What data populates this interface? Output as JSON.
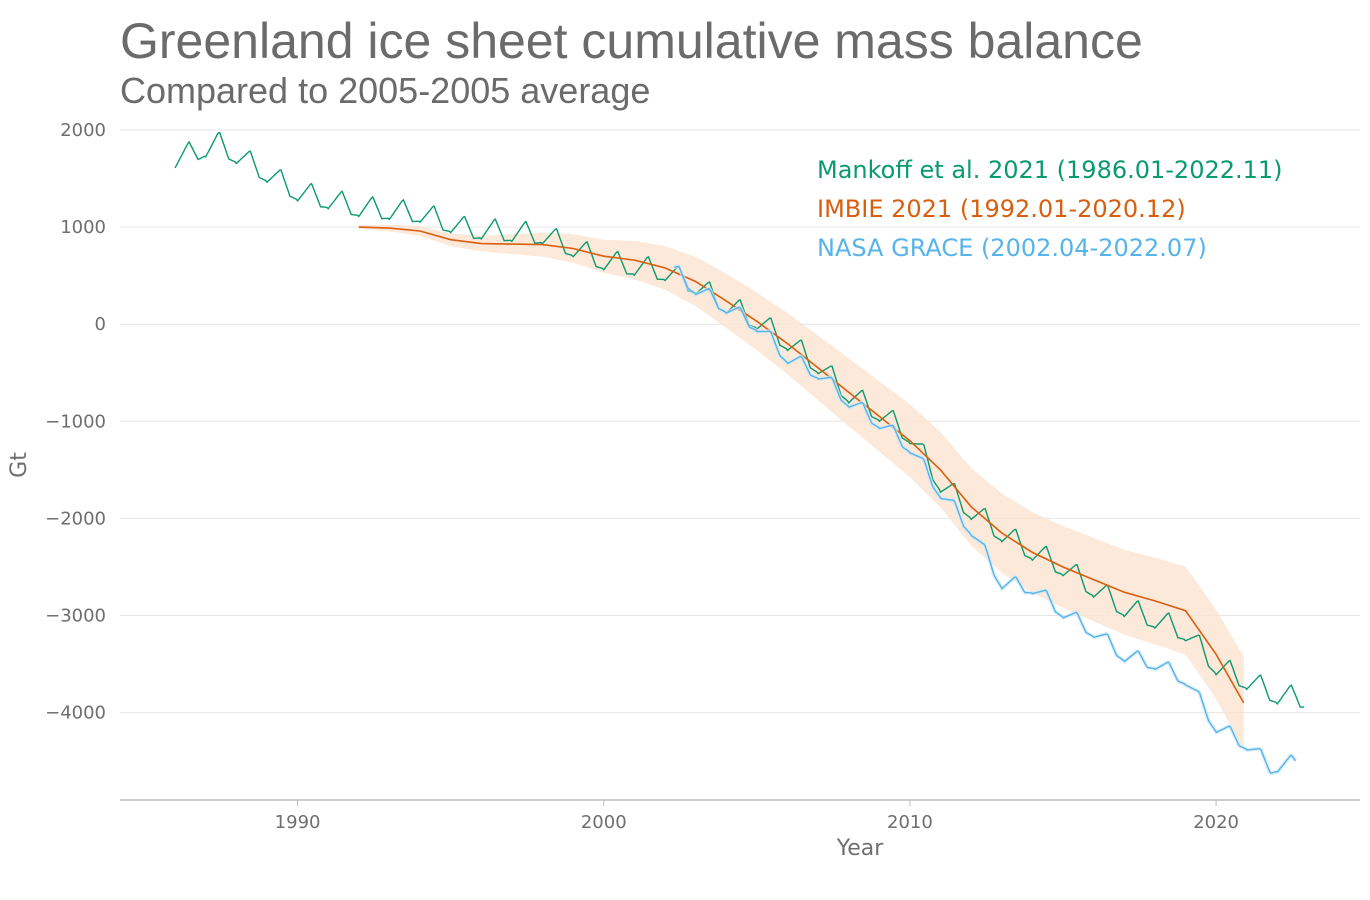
{
  "title": "Greenland ice sheet cumulative mass balance",
  "subtitle": "Compared to 2005-2005 average",
  "chart_data": {
    "type": "line",
    "title": "Greenland ice sheet cumulative mass balance",
    "subtitle": "Compared to 2005-2005 average",
    "xlabel": "Year",
    "ylabel": "Gt",
    "xlim": [
      1984.2,
      2024.7
    ],
    "ylim": [
      -4900,
      2000
    ],
    "x_ticks": [
      1990,
      2000,
      2010,
      2020
    ],
    "y_ticks": [
      2000,
      1000,
      0,
      -1000,
      -2000,
      -3000,
      -4000
    ],
    "y_tick_labels": [
      "2000",
      "1000",
      "0",
      "−1000",
      "−2000",
      "−3000",
      "−4000"
    ],
    "grid": "horizontal",
    "legend_position": "top-right",
    "series": [
      {
        "name": "Mankoff et al. 2021 (1986.01-2022.11)",
        "color": "#0a9a6e",
        "style": "seasonal",
        "anchors": [
          [
            1986.0,
            1720
          ],
          [
            1987.4,
            1880
          ],
          [
            1990,
            1380
          ],
          [
            1992,
            1220
          ],
          [
            1994,
            1160
          ],
          [
            1995.5,
            1000
          ],
          [
            1998,
            940
          ],
          [
            2000,
            670
          ],
          [
            2002,
            560
          ],
          [
            2003,
            420
          ],
          [
            2004,
            220
          ],
          [
            2005,
            60
          ],
          [
            2006,
            -160
          ],
          [
            2007,
            -400
          ],
          [
            2008,
            -700
          ],
          [
            2009,
            -890
          ],
          [
            2010,
            -1120
          ],
          [
            2011,
            -1620
          ],
          [
            2012,
            -1900
          ],
          [
            2013,
            -2130
          ],
          [
            2014,
            -2320
          ],
          [
            2015,
            -2480
          ],
          [
            2016,
            -2700
          ],
          [
            2017,
            -2900
          ],
          [
            2018,
            -3020
          ],
          [
            2019,
            -3150
          ],
          [
            2020,
            -3500
          ],
          [
            2021,
            -3650
          ],
          [
            2022,
            -3800
          ],
          [
            2022.9,
            -3840
          ]
        ],
        "amplitude": 220
      },
      {
        "name": "IMBIE 2021 (1992.01-2020.12)",
        "color": "#d95f0e",
        "band_color": "#fbe3d0",
        "style": "smooth",
        "points": [
          [
            1992,
            1000
          ],
          [
            1993,
            990
          ],
          [
            1994,
            960
          ],
          [
            1995,
            870
          ],
          [
            1996,
            830
          ],
          [
            1997,
            825
          ],
          [
            1998,
            820
          ],
          [
            1999,
            780
          ],
          [
            2000,
            700
          ],
          [
            2001,
            660
          ],
          [
            2002,
            580
          ],
          [
            2003,
            440
          ],
          [
            2004,
            240
          ],
          [
            2005,
            30
          ],
          [
            2006,
            -200
          ],
          [
            2007,
            -450
          ],
          [
            2008,
            -700
          ],
          [
            2009,
            -950
          ],
          [
            2010,
            -1200
          ],
          [
            2011,
            -1500
          ],
          [
            2012,
            -1880
          ],
          [
            2013,
            -2150
          ],
          [
            2014,
            -2350
          ],
          [
            2015,
            -2500
          ],
          [
            2016,
            -2630
          ],
          [
            2017,
            -2760
          ],
          [
            2018,
            -2850
          ],
          [
            2019,
            -2950
          ],
          [
            2020,
            -3400
          ],
          [
            2020.9,
            -3900
          ]
        ],
        "band": [
          [
            1992,
            20
          ],
          [
            1996,
            80
          ],
          [
            2000,
            170
          ],
          [
            2004,
            280
          ],
          [
            2008,
            350
          ],
          [
            2012,
            400
          ],
          [
            2016,
            430
          ],
          [
            2020,
            460
          ],
          [
            2020.9,
            480
          ]
        ]
      },
      {
        "name": "NASA GRACE (2002.04-2022.07)",
        "color": "#56b4e9",
        "style": "seasonal",
        "anchors": [
          [
            2002.3,
            560
          ],
          [
            2003,
            380
          ],
          [
            2004,
            190
          ],
          [
            2005,
            0
          ],
          [
            2006,
            -330
          ],
          [
            2007,
            -490
          ],
          [
            2008,
            -780
          ],
          [
            2009,
            -1000
          ],
          [
            2010,
            -1250
          ],
          [
            2011,
            -1720
          ],
          [
            2012,
            -2100
          ],
          [
            2013,
            -2650
          ],
          [
            2014,
            -2700
          ],
          [
            2015,
            -2950
          ],
          [
            2016,
            -3150
          ],
          [
            2017,
            -3400
          ],
          [
            2018,
            -3480
          ],
          [
            2019,
            -3640
          ],
          [
            2020,
            -4130
          ],
          [
            2021,
            -4310
          ],
          [
            2021.8,
            -4550
          ],
          [
            2022.6,
            -4500
          ]
        ],
        "amplitude": 150
      }
    ]
  }
}
